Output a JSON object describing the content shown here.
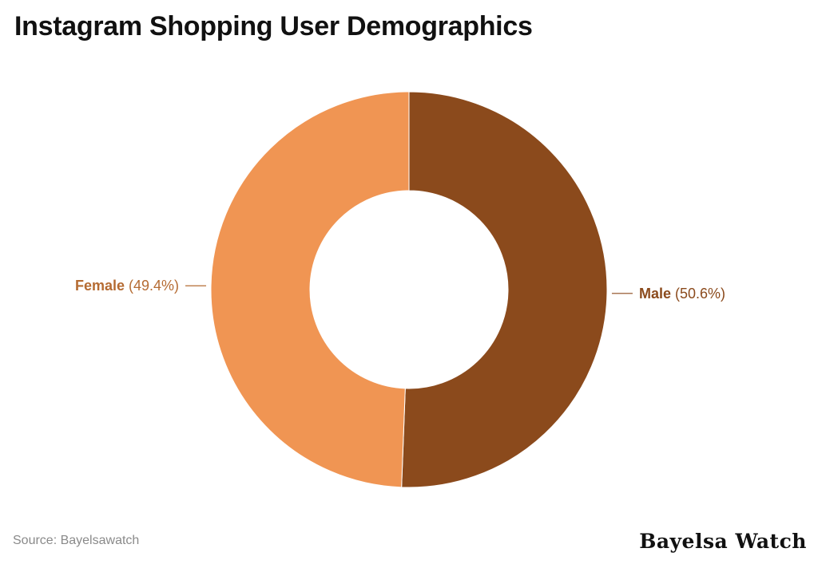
{
  "chart_data": {
    "type": "pie",
    "donut": true,
    "title": "Instagram Shopping User Demographics",
    "slices": [
      {
        "label": "Male",
        "value": 50.6,
        "value_label": "(50.6%)",
        "color": "#8b4a1c",
        "label_color": "#8b4a1c"
      },
      {
        "label": "Female",
        "value": 49.4,
        "value_label": "(49.4%)",
        "color": "#f09553",
        "label_color": "#b56b32"
      }
    ],
    "legend": "none"
  },
  "source": "Source: Bayelsawatch",
  "brand": "Bayelsa Watch"
}
